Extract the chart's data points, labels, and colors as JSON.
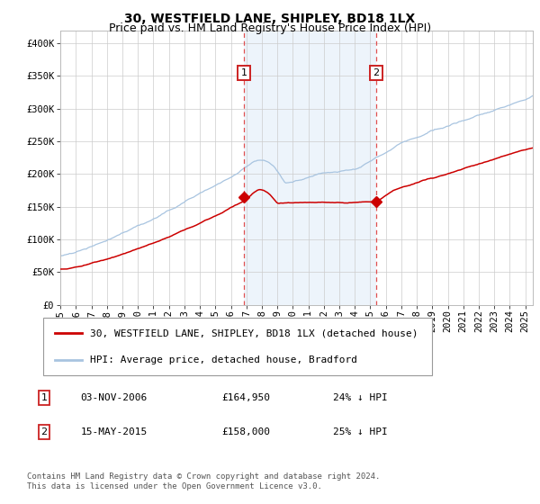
{
  "title": "30, WESTFIELD LANE, SHIPLEY, BD18 1LX",
  "subtitle": "Price paid vs. HM Land Registry's House Price Index (HPI)",
  "ylabel_ticks": [
    "£0",
    "£50K",
    "£100K",
    "£150K",
    "£200K",
    "£250K",
    "£300K",
    "£350K",
    "£400K"
  ],
  "ytick_values": [
    0,
    50000,
    100000,
    150000,
    200000,
    250000,
    300000,
    350000,
    400000
  ],
  "ylim": [
    0,
    420000
  ],
  "xlim_start": 1995.0,
  "xlim_end": 2025.5,
  "hpi_color": "#a8c4e0",
  "price_color": "#cc0000",
  "sale1_date_num": 2006.84,
  "sale1_price": 164950,
  "sale2_date_num": 2015.37,
  "sale2_price": 158000,
  "vline_color": "#e05050",
  "shade_color": "#cce0f5",
  "legend_label1": "30, WESTFIELD LANE, SHIPLEY, BD18 1LX (detached house)",
  "legend_label2": "HPI: Average price, detached house, Bradford",
  "annotation1_num": "1",
  "annotation2_num": "2",
  "note1_date": "03-NOV-2006",
  "note1_price": "£164,950",
  "note1_hpi": "24% ↓ HPI",
  "note2_date": "15-MAY-2015",
  "note2_price": "£158,000",
  "note2_hpi": "25% ↓ HPI",
  "footer": "Contains HM Land Registry data © Crown copyright and database right 2024.\nThis data is licensed under the Open Government Licence v3.0.",
  "plot_bg_color": "#ffffff",
  "title_fontsize": 10,
  "subtitle_fontsize": 9,
  "tick_fontsize": 7.5,
  "legend_fontsize": 8,
  "footer_fontsize": 6.5
}
